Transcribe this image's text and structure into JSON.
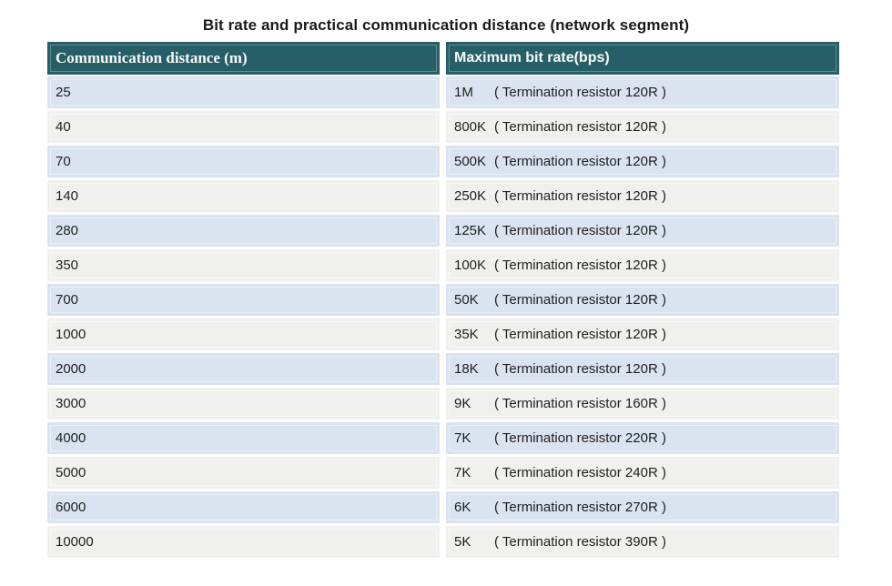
{
  "page": {
    "title": "Bit rate and practical communication distance (network segment)"
  },
  "table": {
    "columns": [
      {
        "label": "Communication distance (m)"
      },
      {
        "label": "Maximum bit rate(bps)"
      }
    ],
    "rows": [
      {
        "distance": "25",
        "rate": "1M",
        "note": "( Termination resistor 120R )"
      },
      {
        "distance": "40",
        "rate": "800K",
        "note": "( Termination resistor 120R )"
      },
      {
        "distance": "70",
        "rate": "500K",
        "note": "( Termination resistor 120R )"
      },
      {
        "distance": "140",
        "rate": "250K",
        "note": "( Termination resistor 120R )"
      },
      {
        "distance": "280",
        "rate": "125K",
        "note": "( Termination resistor 120R )"
      },
      {
        "distance": "350",
        "rate": "100K",
        "note": "( Termination resistor 120R )"
      },
      {
        "distance": "700",
        "rate": "50K",
        "note": "( Termination resistor 120R )"
      },
      {
        "distance": "1000",
        "rate": "35K",
        "note": "( Termination resistor 120R )"
      },
      {
        "distance": "2000",
        "rate": "18K",
        "note": "( Termination resistor 120R )"
      },
      {
        "distance": "3000",
        "rate": "9K",
        "note": "( Termination resistor 160R )"
      },
      {
        "distance": "4000",
        "rate": "7K",
        "note": "( Termination resistor 220R )"
      },
      {
        "distance": "5000",
        "rate": "7K",
        "note": "( Termination resistor 240R )"
      },
      {
        "distance": "6000",
        "rate": "6K",
        "note": "( Termination resistor 270R )"
      },
      {
        "distance": "10000",
        "rate": "5K",
        "note": "( Termination resistor 390R )"
      }
    ]
  },
  "colors": {
    "header_bg": "#265f67",
    "row_blue": "#dae3f0",
    "row_gray": "#f0f0ef",
    "header_text": "#fafafa",
    "body_text": "#1f1f1f"
  }
}
